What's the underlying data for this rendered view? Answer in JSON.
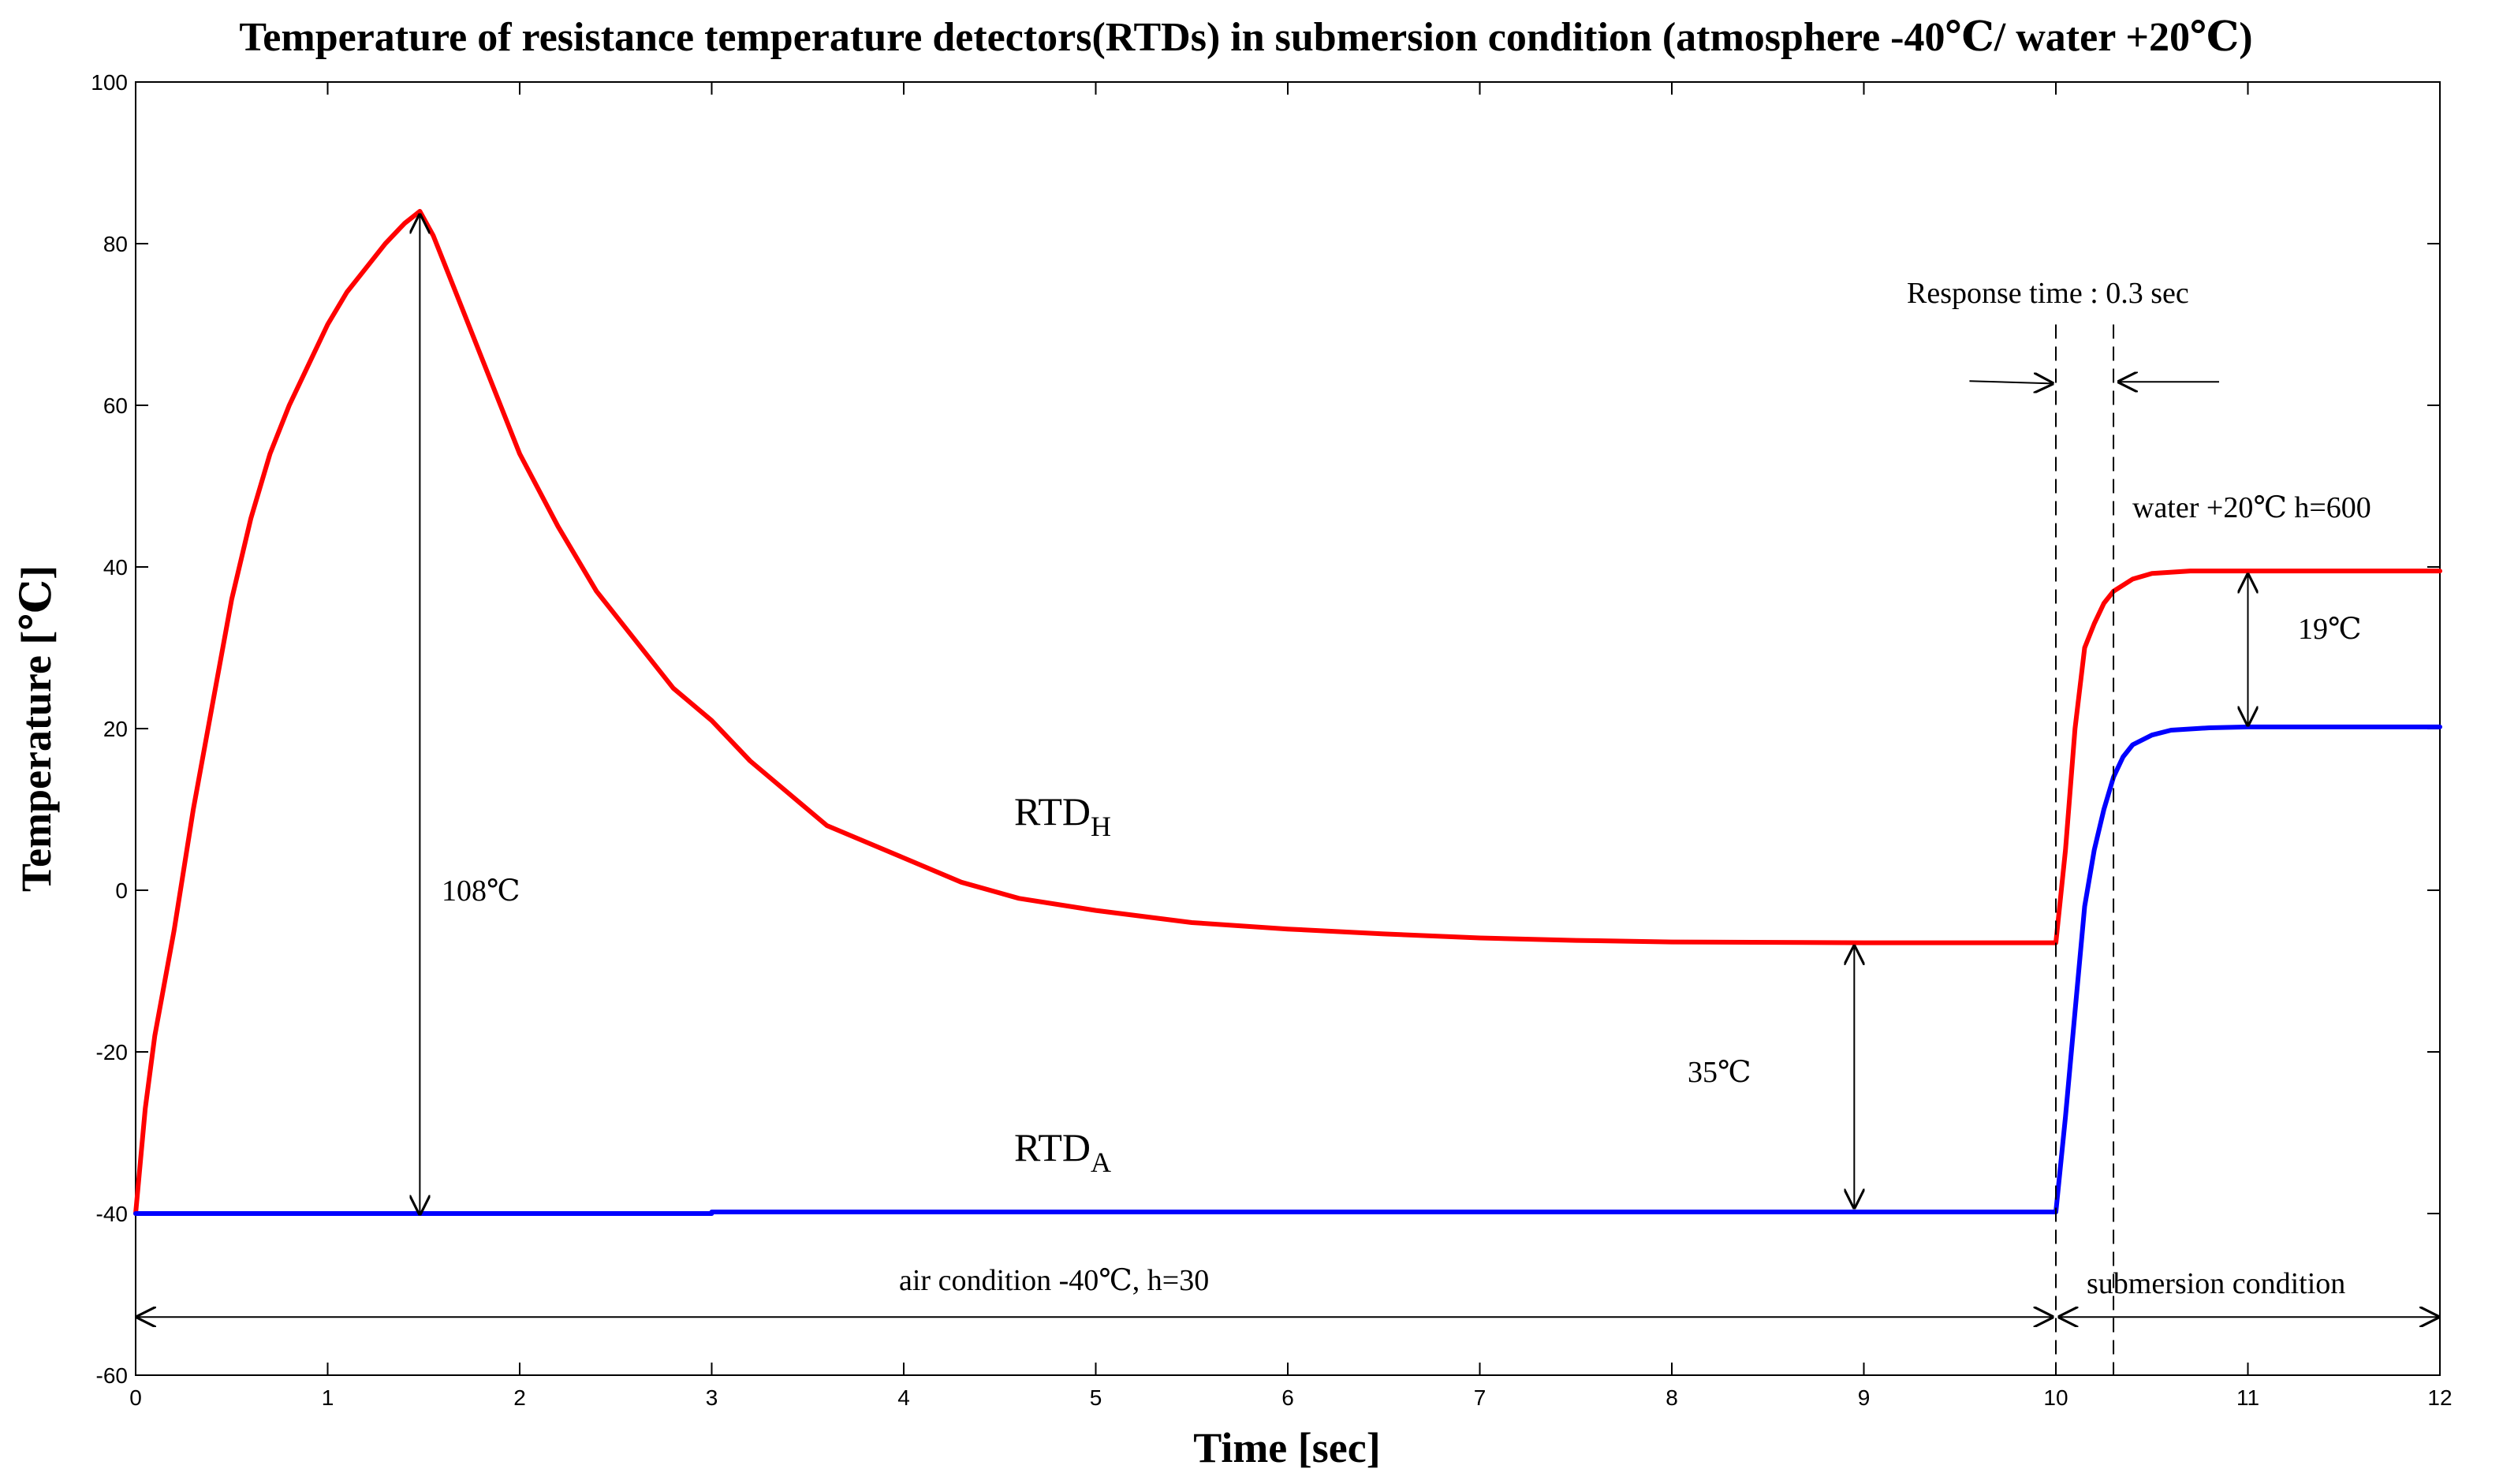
{
  "chart_data": {
    "type": "line",
    "title": "Temperature of resistance temperature detectors(RTDs) in submersion condition (atmosphere -40℃/ water +20℃)",
    "xlabel": "Time [sec]",
    "ylabel": "Temperature [℃]",
    "xlim": [
      0,
      12
    ],
    "ylim": [
      -60,
      100
    ],
    "x_ticks": [
      0,
      1,
      2,
      3,
      4,
      5,
      6,
      7,
      8,
      9,
      10,
      11,
      12
    ],
    "y_ticks": [
      -60,
      -40,
      -20,
      0,
      20,
      40,
      60,
      80,
      100
    ],
    "grid": false,
    "series": [
      {
        "name": "RTD_H",
        "label_main": "RTD",
        "label_sub": "H",
        "color": "#ff0000",
        "points": [
          [
            0,
            -40
          ],
          [
            0.05,
            -27
          ],
          [
            0.1,
            -18
          ],
          [
            0.2,
            -5
          ],
          [
            0.3,
            10
          ],
          [
            0.4,
            23
          ],
          [
            0.5,
            36
          ],
          [
            0.6,
            46
          ],
          [
            0.7,
            54
          ],
          [
            0.8,
            60
          ],
          [
            0.9,
            65
          ],
          [
            1.0,
            70
          ],
          [
            1.1,
            74
          ],
          [
            1.2,
            77
          ],
          [
            1.3,
            80
          ],
          [
            1.4,
            82.5
          ],
          [
            1.48,
            84
          ],
          [
            1.55,
            81
          ],
          [
            1.6,
            78
          ],
          [
            1.7,
            72
          ],
          [
            1.8,
            66
          ],
          [
            2.0,
            54
          ],
          [
            2.2,
            45
          ],
          [
            2.4,
            37
          ],
          [
            2.6,
            31
          ],
          [
            2.8,
            25
          ],
          [
            3.0,
            21
          ],
          [
            3.2,
            16
          ],
          [
            3.4,
            12
          ],
          [
            3.6,
            8
          ],
          [
            3.8,
            6
          ],
          [
            4.0,
            4
          ],
          [
            4.3,
            1
          ],
          [
            4.6,
            -1
          ],
          [
            5.0,
            -2.5
          ],
          [
            5.5,
            -4
          ],
          [
            6.0,
            -4.8
          ],
          [
            6.5,
            -5.4
          ],
          [
            7.0,
            -5.9
          ],
          [
            7.5,
            -6.2
          ],
          [
            8.0,
            -6.4
          ],
          [
            9.0,
            -6.5
          ],
          [
            10.0,
            -6.5
          ],
          [
            10.05,
            5
          ],
          [
            10.1,
            20
          ],
          [
            10.15,
            30
          ],
          [
            10.2,
            33
          ],
          [
            10.25,
            35.5
          ],
          [
            10.3,
            37
          ],
          [
            10.4,
            38.5
          ],
          [
            10.5,
            39.2
          ],
          [
            10.7,
            39.5
          ],
          [
            11.0,
            39.5
          ],
          [
            12.0,
            39.5
          ]
        ]
      },
      {
        "name": "RTD_A",
        "label_main": "RTD",
        "label_sub": "A",
        "color": "#0000ff",
        "points": [
          [
            0,
            -40
          ],
          [
            3.0,
            -40
          ],
          [
            3.0,
            -39.8
          ],
          [
            10.0,
            -39.8
          ],
          [
            10.05,
            -28
          ],
          [
            10.1,
            -15
          ],
          [
            10.15,
            -2
          ],
          [
            10.2,
            5
          ],
          [
            10.25,
            10
          ],
          [
            10.3,
            14
          ],
          [
            10.35,
            16.5
          ],
          [
            10.4,
            18
          ],
          [
            10.5,
            19.2
          ],
          [
            10.6,
            19.8
          ],
          [
            10.8,
            20.1
          ],
          [
            11.0,
            20.2
          ],
          [
            12.0,
            20.2
          ]
        ]
      }
    ],
    "annotations": {
      "delta_peak": "108℃",
      "delta_steady": "35℃",
      "delta_water": "19℃",
      "response_time": "Response time : 0.3 sec",
      "water_condition": "water +20℃ h=600",
      "air_condition": "air condition -40℃, h=30",
      "submersion_condition": "submersion condition"
    }
  }
}
